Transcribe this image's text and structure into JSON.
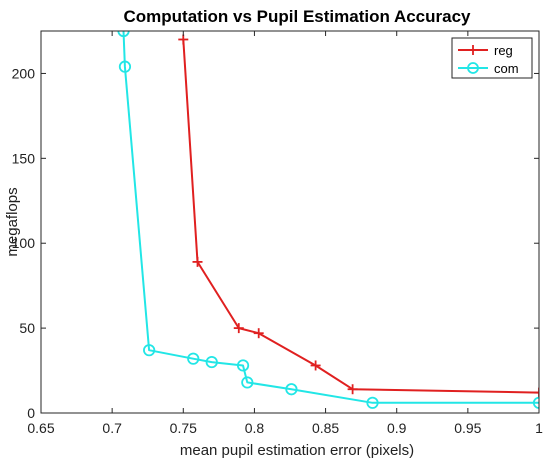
{
  "chart_data": {
    "type": "line",
    "title": "Computation vs Pupil Estimation Accuracy",
    "xlabel": "mean pupil estimation error (pixels)",
    "ylabel": "megaflops",
    "xlim": [
      0.65,
      1.0
    ],
    "ylim": [
      0,
      225
    ],
    "xticks": [
      "0.65",
      "0.7",
      "0.75",
      "0.8",
      "0.85",
      "0.9",
      "0.95",
      "1"
    ],
    "yticks": [
      "0",
      "50",
      "100",
      "150",
      "200"
    ],
    "grid": false,
    "legend_position": "top-right",
    "series": [
      {
        "name": "reg",
        "color": "#e02020",
        "marker": "plus",
        "points": [
          [
            0.75,
            220
          ],
          [
            0.76,
            89
          ],
          [
            0.789,
            50
          ],
          [
            0.803,
            47
          ],
          [
            0.843,
            28
          ],
          [
            0.869,
            14
          ],
          [
            1.0,
            12
          ]
        ]
      },
      {
        "name": "com",
        "color": "#22e6e6",
        "marker": "circle",
        "points": [
          [
            0.708,
            225
          ],
          [
            0.709,
            204
          ],
          [
            0.726,
            37
          ],
          [
            0.757,
            32
          ],
          [
            0.77,
            30
          ],
          [
            0.792,
            28
          ],
          [
            0.795,
            18
          ],
          [
            0.826,
            14
          ],
          [
            0.883,
            6
          ],
          [
            1.0,
            6
          ]
        ]
      }
    ]
  }
}
